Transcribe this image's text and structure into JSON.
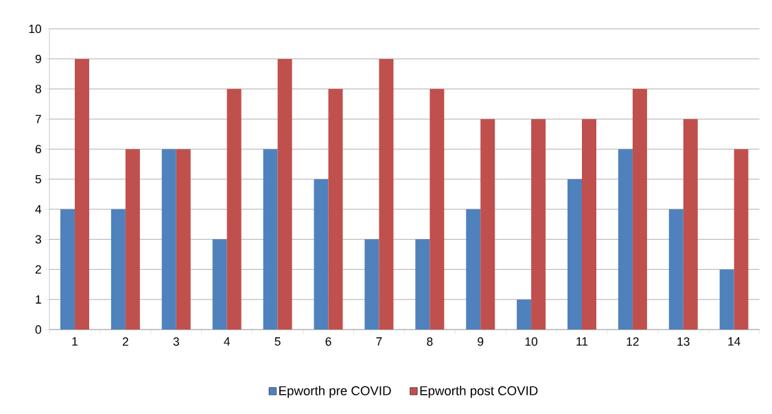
{
  "chart_data": {
    "type": "bar",
    "categories": [
      "1",
      "2",
      "3",
      "4",
      "5",
      "6",
      "7",
      "8",
      "9",
      "10",
      "11",
      "12",
      "13",
      "14"
    ],
    "series": [
      {
        "name": "Epworth pre COVID",
        "color": "#4f81bd",
        "values": [
          4,
          4,
          6,
          3,
          6,
          5,
          3,
          3,
          4,
          1,
          5,
          6,
          4,
          2
        ]
      },
      {
        "name": "Epworth post COVID",
        "color": "#c0504d",
        "values": [
          9,
          6,
          6,
          8,
          9,
          8,
          9,
          8,
          7,
          7,
          7,
          8,
          7,
          6
        ]
      }
    ],
    "ylim": [
      0,
      10
    ],
    "yticks": [
      0,
      1,
      2,
      3,
      4,
      5,
      6,
      7,
      8,
      9,
      10
    ],
    "grid": "y",
    "legend": "bottom"
  }
}
